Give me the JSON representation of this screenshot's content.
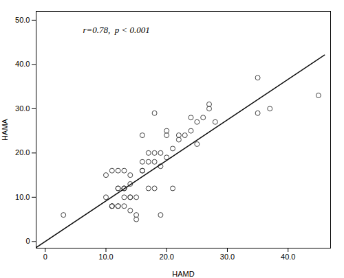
{
  "chart_data": {
    "type": "scatter",
    "annotation": "r=0.78,  p < 0.001",
    "xlabel": "HAMD",
    "ylabel": "HAMA",
    "xlim": [
      -1.5,
      47
    ],
    "ylim": [
      -1.5,
      52
    ],
    "xticks": [
      0,
      {
        "value": 10,
        "label": "10.0"
      },
      {
        "value": 20,
        "label": "20.0"
      },
      {
        "value": 30,
        "label": "30.0"
      },
      {
        "value": 40,
        "label": "40.0"
      }
    ],
    "yticks": [
      0,
      {
        "value": 10,
        "label": "10.0"
      },
      {
        "value": 20,
        "label": "20.0"
      },
      {
        "value": 30,
        "label": "30.0"
      },
      {
        "value": 40,
        "label": "40.0"
      },
      {
        "value": 50,
        "label": "50.0"
      }
    ],
    "grid": false,
    "series": [
      {
        "type": "scatter",
        "marker": "circle",
        "color": "#444444",
        "x": [
          3,
          10,
          10,
          11,
          11,
          11,
          11,
          12,
          12,
          12,
          12,
          12,
          13,
          13,
          13,
          13,
          13,
          13,
          14,
          14,
          14,
          14,
          14,
          15,
          15,
          15,
          16,
          16,
          16,
          16,
          17,
          17,
          17,
          18,
          18,
          18,
          18,
          19,
          19,
          19,
          20,
          20,
          20,
          21,
          21,
          22,
          22,
          23,
          24,
          24,
          25,
          25,
          26,
          27,
          27,
          28,
          35,
          35,
          37,
          45
        ],
        "values": [
          6,
          10,
          15,
          8,
          8,
          8,
          16,
          8,
          8,
          12,
          12,
          16,
          8,
          10,
          12,
          12,
          12,
          16,
          7,
          10,
          10,
          13,
          15,
          5,
          6,
          10,
          16,
          16,
          18,
          24,
          12,
          18,
          20,
          12,
          18,
          20,
          29,
          6,
          17,
          20,
          19,
          24,
          25,
          12,
          21,
          23,
          24,
          24,
          25,
          28,
          22,
          27,
          28,
          30,
          31,
          27,
          29,
          37,
          30,
          33
        ]
      },
      {
        "type": "line",
        "line_style": "solid",
        "color": "#111111",
        "x": [
          -1.5,
          46
        ],
        "values": [
          -1.38,
          42.12
        ]
      }
    ]
  }
}
